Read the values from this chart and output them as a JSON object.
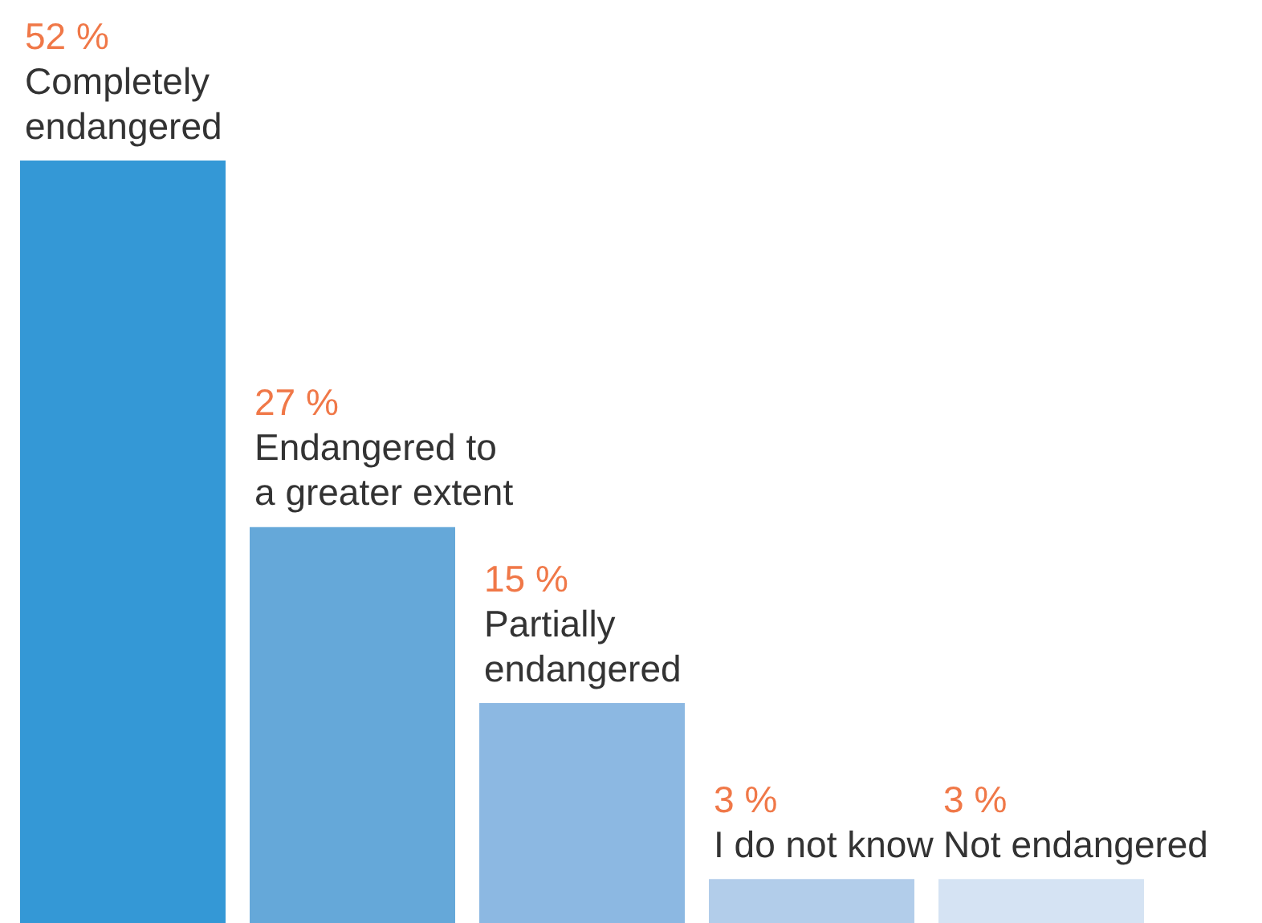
{
  "chart_data": {
    "type": "bar",
    "categories": [
      "Completely endangered",
      "Endangered to a greater extent",
      "Partially endangered",
      "I do not know",
      "Not endangered"
    ],
    "values": [
      52,
      27,
      15,
      3,
      3
    ],
    "value_labels": [
      "52 %",
      "27 %",
      "15 %",
      "3 %",
      "3 %"
    ],
    "colors": [
      "#3498d6",
      "#65a8d9",
      "#8cb8e2",
      "#b2cdea",
      "#d5e3f3"
    ]
  }
}
